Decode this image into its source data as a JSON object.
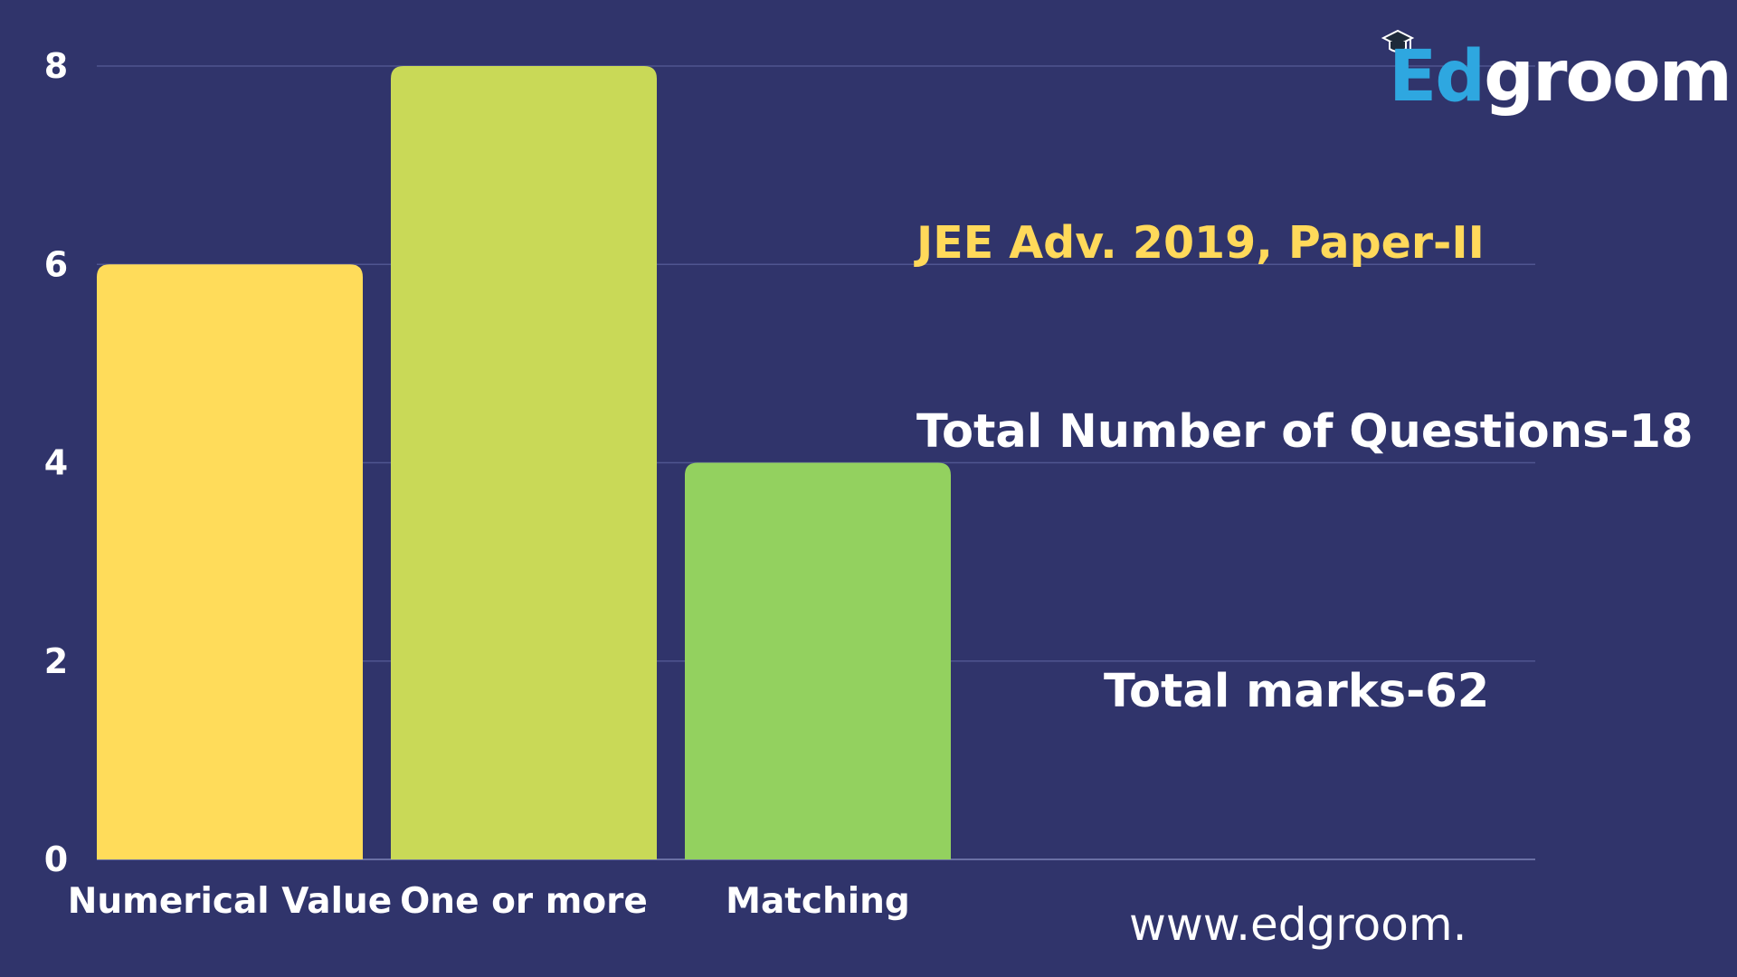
{
  "brand": {
    "logo_text_ed": "Ed",
    "logo_text_groom": "groom",
    "website": "www.edgroom.",
    "colors": {
      "background": "#30346b",
      "ed_blue": "#2ea7e0",
      "highlight": "#ffd95a"
    }
  },
  "annotations": {
    "subtitle": "JEE Adv. 2019, Paper-II",
    "total_questions": "Total Number of Questions-18",
    "total_marks": "Total marks-62"
  },
  "chart_data": {
    "type": "bar",
    "title": "",
    "xlabel": "",
    "ylabel": "",
    "categories": [
      "Numerical Value",
      "One or more",
      "Matching"
    ],
    "values": [
      6,
      8,
      4
    ],
    "bar_colors": [
      "#ffdc5a",
      "#c9d957",
      "#93d15f"
    ],
    "ylim": [
      0,
      8
    ],
    "yticks": [
      "0",
      "2",
      "4",
      "6",
      "8"
    ],
    "grid": true,
    "legend": "none"
  }
}
